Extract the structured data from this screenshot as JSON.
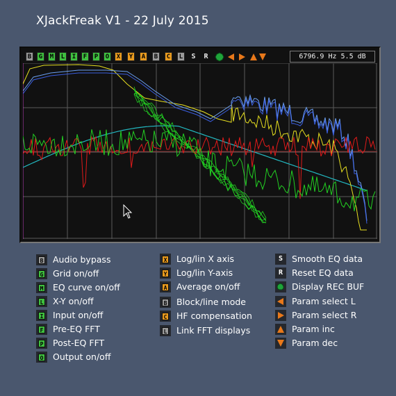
{
  "app": {
    "title": "XJackFreak V1 - 22 July 2015"
  },
  "colors": {
    "background": "#4a576e",
    "scope_bg": "#111111",
    "grid": "#5a5a5a",
    "grid_mid": "#8a2a2a",
    "key_green": "#3fbf3f",
    "key_orange": "#e89a1e",
    "key_gray": "#9a9a9a",
    "trace_yellow": "#e8e020",
    "trace_blue": "#3a5ee0",
    "trace_green": "#22d022",
    "trace_red": "#e01a1a",
    "trace_cyan": "#22b8c0",
    "trace_lightblue": "#6a9ef0"
  },
  "toolbar": {
    "buttons": [
      {
        "label": "B",
        "color": "gray"
      },
      {
        "label": "G",
        "color": "green"
      },
      {
        "label": "M",
        "color": "green"
      },
      {
        "label": "L",
        "color": "green"
      },
      {
        "label": "I",
        "color": "green"
      },
      {
        "label": "F",
        "color": "green"
      },
      {
        "label": "P",
        "color": "green"
      },
      {
        "label": "O",
        "color": "green"
      },
      {
        "label": "X",
        "color": "orange"
      },
      {
        "label": "Y",
        "color": "orange"
      },
      {
        "label": "A",
        "color": "orange"
      },
      {
        "label": "B",
        "color": "gray"
      },
      {
        "label": "C",
        "color": "orange"
      },
      {
        "label": "L",
        "color": "gray"
      }
    ],
    "plain_buttons": [
      "S",
      "R"
    ],
    "icon_buttons": [
      "rec-buf-dot-icon",
      "param-select-left-icon",
      "param-select-right-icon",
      "param-inc-icon",
      "param-dec-icon"
    ],
    "readout": "6796.9 Hz 5.5 dB"
  },
  "legend": {
    "col1": [
      {
        "key": "B",
        "color": "gray",
        "label": "Audio bypass"
      },
      {
        "key": "G",
        "color": "green",
        "label": "Grid on/off"
      },
      {
        "key": "M",
        "color": "green",
        "label": "EQ curve on/off"
      },
      {
        "key": "L",
        "color": "green",
        "label": "X-Y on/off"
      },
      {
        "key": "I",
        "color": "green",
        "label": "Input on/off"
      },
      {
        "key": "F",
        "color": "green",
        "label": "Pre-EQ FFT"
      },
      {
        "key": "P",
        "color": "green",
        "label": "Post-EQ FFT"
      },
      {
        "key": "O",
        "color": "green",
        "label": "Output on/off"
      }
    ],
    "col2": [
      {
        "key": "X",
        "color": "orange",
        "label": "Log/lin X axis"
      },
      {
        "key": "Y",
        "color": "orange",
        "label": "Log/lin Y-axis"
      },
      {
        "key": "A",
        "color": "orange",
        "label": "Average on/off"
      },
      {
        "key": "B",
        "color": "gray",
        "label": "Block/line mode"
      },
      {
        "key": "C",
        "color": "orange",
        "label": "HF compensation"
      },
      {
        "key": "L",
        "color": "gray",
        "label": "Link FFT displays"
      }
    ],
    "col3": [
      {
        "key": "S",
        "kind": "text",
        "label": "Smooth EQ data"
      },
      {
        "key": "R",
        "kind": "text",
        "label": "Reset EQ data"
      },
      {
        "key": "dot",
        "kind": "icon",
        "icon": "rec-buf-dot-icon",
        "label": "Display REC BUF"
      },
      {
        "key": "left",
        "kind": "icon",
        "icon": "triangle-left-icon",
        "label": "Param select L"
      },
      {
        "key": "right",
        "kind": "icon",
        "icon": "triangle-right-icon",
        "label": "Param select R"
      },
      {
        "key": "up",
        "kind": "icon",
        "icon": "triangle-up-icon",
        "label": "Param inc"
      },
      {
        "key": "down",
        "kind": "icon",
        "icon": "triangle-down-icon",
        "label": "Param dec"
      }
    ]
  }
}
